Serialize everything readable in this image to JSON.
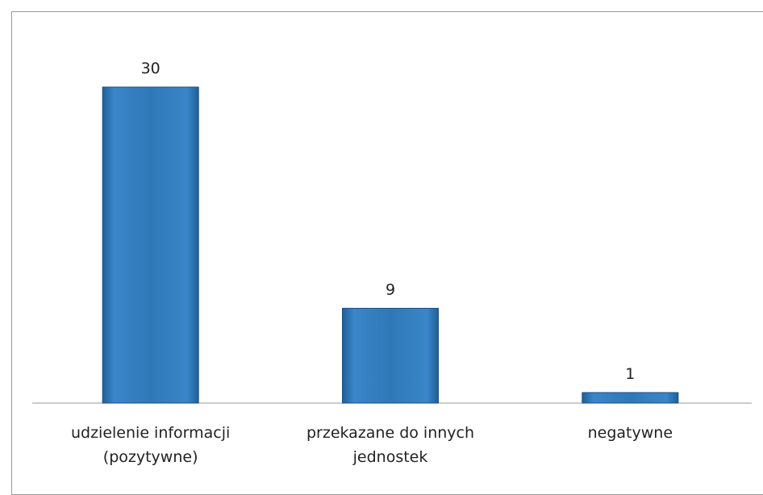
{
  "chart_data": {
    "type": "bar",
    "categories": [
      "udzielenie informacji (pozytywne)",
      "przekazane do innych jednostek",
      "negatywne"
    ],
    "values": [
      30,
      9,
      1
    ],
    "color": "#2f78b8"
  }
}
